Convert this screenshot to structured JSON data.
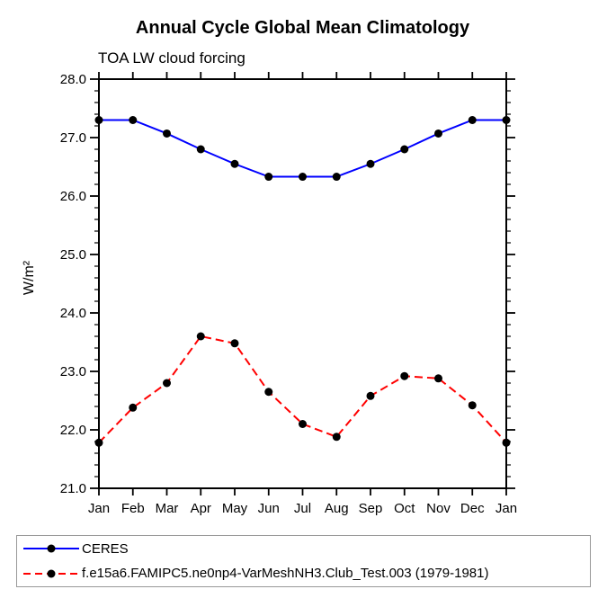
{
  "chart_data": {
    "type": "line",
    "title": "Annual Cycle Global Mean Climatology",
    "subtitle": "TOA LW cloud forcing",
    "xlabel": "",
    "ylabel": "W/m²",
    "ylim": [
      21.0,
      28.0
    ],
    "ytick_major_interval": 1.0,
    "ytick_minor_interval": 0.2,
    "grid": false,
    "legend_position": "bottom-left-box",
    "categories": [
      "Jan",
      "Feb",
      "Mar",
      "Apr",
      "May",
      "Jun",
      "Jul",
      "Aug",
      "Sep",
      "Oct",
      "Nov",
      "Dec",
      "Jan"
    ],
    "series": [
      {
        "name": "CERES",
        "color": "#0000ff",
        "line_style": "solid",
        "marker": "filled-circle",
        "marker_color": "#000000",
        "values": [
          27.3,
          27.3,
          27.07,
          26.8,
          26.55,
          26.33,
          26.33,
          26.33,
          26.55,
          26.8,
          27.07,
          27.3,
          27.3
        ]
      },
      {
        "name": "f.e15a6.FAMIPC5.ne0np4-VarMeshNH3.Club_Test.003 (1979-1981)",
        "color": "#ff0000",
        "line_style": "dashed",
        "marker": "filled-circle",
        "marker_color": "#000000",
        "values": [
          21.78,
          22.38,
          22.8,
          23.6,
          23.48,
          22.65,
          22.1,
          21.88,
          22.58,
          22.92,
          22.88,
          22.42,
          21.78
        ]
      }
    ]
  }
}
